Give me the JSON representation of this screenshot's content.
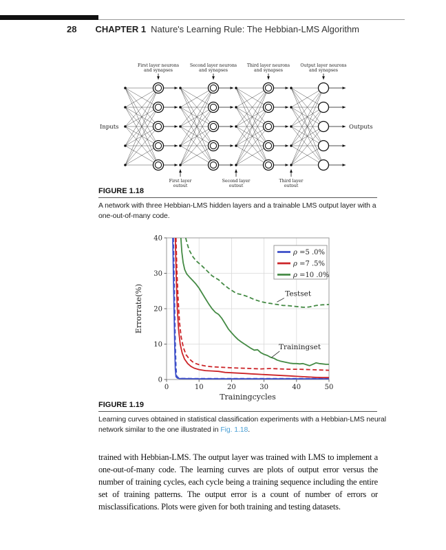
{
  "page": {
    "number": "28",
    "chapter_label": "CHAPTER 1",
    "chapter_title": "Nature's Learning Rule: The Hebbian-LMS Algorithm"
  },
  "figure_118": {
    "label": "FIGURE 1.18",
    "caption": "A network with three Hebbian-LMS hidden layers and a trainable LMS output layer with a one-out-of-many code.",
    "diagram": {
      "inputs_label": "Inputs",
      "outputs_label": "Outputs",
      "rows": 5,
      "layers": 4,
      "hidden_layers": 3,
      "layer_top_labels": [
        [
          "First layer neurons",
          "and synapses"
        ],
        [
          "Second layer neurons",
          "and synapses"
        ],
        [
          "Third layer neurons",
          "and synapses"
        ],
        [
          "Output layer neurons",
          "and synapses"
        ]
      ],
      "layer_bottom_labels": [
        [
          "First layer",
          "output"
        ],
        [
          "Second layer",
          "output"
        ],
        [
          "Third layer",
          "output"
        ]
      ]
    }
  },
  "figure_119": {
    "label": "FIGURE 1.19",
    "caption_before_link": "Learning curves obtained in statistical classification experiments with a Hebbian-LMS neural network similar to the one illustrated in ",
    "caption_link": "Fig. 1.18",
    "caption_after_link": "."
  },
  "chart_data": {
    "type": "line",
    "xlabel": "Trainingcycles",
    "ylabel": "Errorrate(%)",
    "xlim": [
      0,
      50
    ],
    "ylim": [
      0,
      40
    ],
    "xticks": [
      0,
      10,
      20,
      30,
      40,
      50
    ],
    "yticks": [
      0,
      10,
      20,
      30,
      40
    ],
    "grid": true,
    "legend_position": "top-right",
    "legend": [
      {
        "label_sym": "ρ",
        "label_rest": " =5 .0%",
        "color": "#3c4ec8"
      },
      {
        "label_sym": "ρ",
        "label_rest": " =7 .5%",
        "color": "#cc2428"
      },
      {
        "label_sym": "ρ",
        "label_rest": " =10 .0%",
        "color": "#448a44"
      }
    ],
    "annotations": [
      {
        "text": "Testset",
        "tx": 40.5,
        "ty": 24.3,
        "ax1": 36.2,
        "ay1": 23.0,
        "ax2": 34.0,
        "ay2": 21.9
      },
      {
        "text": "Trainingset",
        "tx": 41.0,
        "ty": 9.2,
        "ax1": 34.8,
        "ay1": 8.0,
        "ax2": 32.3,
        "ay2": 6.2
      }
    ],
    "series": [
      {
        "name": "rho 5.0% training set",
        "color": "#3c4ec8",
        "dash": false,
        "points": [
          [
            1.9,
            40
          ],
          [
            2.1,
            30
          ],
          [
            2.3,
            20
          ],
          [
            2.5,
            10
          ],
          [
            2.7,
            3
          ],
          [
            2.9,
            0.8
          ],
          [
            3.3,
            0.4
          ],
          [
            4,
            0.25
          ],
          [
            10,
            0.2
          ],
          [
            20,
            0.2
          ],
          [
            30,
            0.2
          ],
          [
            40,
            0.2
          ],
          [
            50,
            0.2
          ]
        ]
      },
      {
        "name": "rho 5.0% test set",
        "color": "#3c4ec8",
        "dash": true,
        "points": [
          [
            2.1,
            40
          ],
          [
            2.3,
            30
          ],
          [
            2.5,
            20
          ],
          [
            2.7,
            10
          ],
          [
            2.9,
            3.5
          ],
          [
            3.1,
            1
          ],
          [
            3.6,
            0.5
          ],
          [
            4.5,
            0.3
          ],
          [
            10,
            0.25
          ],
          [
            20,
            0.25
          ],
          [
            30,
            0.25
          ],
          [
            40,
            0.25
          ],
          [
            50,
            0.25
          ]
        ]
      },
      {
        "name": "rho 7.5% training set",
        "color": "#cc2428",
        "dash": false,
        "points": [
          [
            2.7,
            40
          ],
          [
            3.0,
            28
          ],
          [
            3.3,
            20
          ],
          [
            3.7,
            14
          ],
          [
            4.2,
            10
          ],
          [
            4.8,
            7.5
          ],
          [
            5.5,
            5.8
          ],
          [
            6.5,
            4.5
          ],
          [
            7.5,
            3.7
          ],
          [
            8.5,
            3.2
          ],
          [
            10,
            2.8
          ],
          [
            12,
            2.5
          ],
          [
            14,
            2.4
          ],
          [
            16,
            2.3
          ],
          [
            18,
            2.0
          ],
          [
            20,
            1.9
          ],
          [
            22,
            1.8
          ],
          [
            24,
            1.7
          ],
          [
            26,
            1.6
          ],
          [
            28,
            1.5
          ],
          [
            30,
            1.4
          ],
          [
            32,
            1.3
          ],
          [
            34,
            1.2
          ],
          [
            36,
            1.1
          ],
          [
            38,
            1.0
          ],
          [
            40,
            0.9
          ],
          [
            42,
            0.8
          ],
          [
            44,
            0.7
          ],
          [
            46,
            0.6
          ],
          [
            48,
            0.55
          ],
          [
            50,
            0.55
          ]
        ]
      },
      {
        "name": "rho 7.5% test set",
        "color": "#cc2428",
        "dash": true,
        "points": [
          [
            2.9,
            40
          ],
          [
            3.2,
            30
          ],
          [
            3.6,
            22
          ],
          [
            4.0,
            16
          ],
          [
            4.5,
            12
          ],
          [
            5.2,
            9
          ],
          [
            6,
            7
          ],
          [
            7,
            5.8
          ],
          [
            8,
            5
          ],
          [
            9,
            4.5
          ],
          [
            10,
            4.2
          ],
          [
            12,
            3.8
          ],
          [
            14,
            3.6
          ],
          [
            16,
            3.5
          ],
          [
            18,
            3.4
          ],
          [
            20,
            3.3
          ],
          [
            23,
            3.2
          ],
          [
            26,
            3.1
          ],
          [
            29,
            3.0
          ],
          [
            32,
            3.1
          ],
          [
            35,
            3.0
          ],
          [
            38,
            2.9
          ],
          [
            41,
            2.9
          ],
          [
            44,
            2.8
          ],
          [
            47,
            2.7
          ],
          [
            50,
            2.6
          ]
        ]
      },
      {
        "name": "rho 10.0% training set",
        "color": "#448a44",
        "dash": false,
        "points": [
          [
            4.4,
            40
          ],
          [
            4.7,
            36
          ],
          [
            5.1,
            33
          ],
          [
            5.6,
            31
          ],
          [
            6.2,
            29.8
          ],
          [
            7,
            29
          ],
          [
            8,
            28
          ],
          [
            9,
            27
          ],
          [
            10,
            25.8
          ],
          [
            11,
            24.3
          ],
          [
            12,
            22.8
          ],
          [
            13,
            21.3
          ],
          [
            14,
            20
          ],
          [
            15,
            19
          ],
          [
            16,
            18.4
          ],
          [
            17,
            17.3
          ],
          [
            18,
            15.8
          ],
          [
            19,
            14.3
          ],
          [
            20,
            13.2
          ],
          [
            21,
            12.2
          ],
          [
            22,
            11.3
          ],
          [
            23,
            10.6
          ],
          [
            24,
            10
          ],
          [
            25,
            9.4
          ],
          [
            26,
            8.8
          ],
          [
            27,
            8.3
          ],
          [
            28,
            8.4
          ],
          [
            29,
            7.6
          ],
          [
            30,
            7.1
          ],
          [
            31,
            6.8
          ],
          [
            32,
            6.3
          ],
          [
            33,
            6
          ],
          [
            34,
            5.5
          ],
          [
            35,
            5.2
          ],
          [
            36,
            5
          ],
          [
            37,
            4.8
          ],
          [
            38,
            4.6
          ],
          [
            39,
            4.5
          ],
          [
            40,
            4.5
          ],
          [
            41,
            4.4
          ],
          [
            42,
            4.5
          ],
          [
            43,
            4.2
          ],
          [
            44,
            3.9
          ],
          [
            45,
            4.3
          ],
          [
            46,
            4.7
          ],
          [
            47,
            4.5
          ],
          [
            48,
            4.4
          ],
          [
            49,
            4.3
          ],
          [
            50,
            4.3
          ]
        ]
      },
      {
        "name": "rho 10.0% test set",
        "color": "#448a44",
        "dash": true,
        "points": [
          [
            5.9,
            40
          ],
          [
            6.4,
            38.2
          ],
          [
            7,
            36.5
          ],
          [
            8,
            34.8
          ],
          [
            9,
            33.6
          ],
          [
            10,
            32.8
          ],
          [
            11,
            32
          ],
          [
            12,
            31.1
          ],
          [
            13,
            30.2
          ],
          [
            14,
            29.3
          ],
          [
            15,
            28.7
          ],
          [
            16,
            28.2
          ],
          [
            17,
            27.3
          ],
          [
            18,
            26.5
          ],
          [
            19,
            25.8
          ],
          [
            20,
            25.2
          ],
          [
            21,
            24.6
          ],
          [
            22,
            24.2
          ],
          [
            23,
            24
          ],
          [
            24,
            23.7
          ],
          [
            25,
            23.4
          ],
          [
            26,
            23
          ],
          [
            27,
            22.6
          ],
          [
            28,
            22.3
          ],
          [
            29,
            22
          ],
          [
            30,
            21.8
          ],
          [
            31,
            21.6
          ],
          [
            32,
            21.5
          ],
          [
            33,
            21.3
          ],
          [
            34,
            21.2
          ],
          [
            35,
            21
          ],
          [
            36,
            20.9
          ],
          [
            37,
            20.9
          ],
          [
            38,
            20.8
          ],
          [
            39,
            20.7
          ],
          [
            40,
            20.6
          ],
          [
            41,
            20.5
          ],
          [
            42,
            20.4
          ],
          [
            43,
            20.4
          ],
          [
            44,
            20.5
          ],
          [
            45,
            20.7
          ],
          [
            46,
            20.9
          ],
          [
            47,
            21
          ],
          [
            48,
            21.1
          ],
          [
            49,
            21.1
          ],
          [
            50,
            21.2
          ]
        ]
      }
    ]
  },
  "body_paragraph": "trained with Hebbian-LMS. The output layer was trained with LMS to implement a one-out-of-many code. The learning curves are plots of output error versus the number of training cycles, each cycle being a training sequence including the entire set of training patterns. The output error is a count of number of errors or misclassifications. Plots were given for both training and testing datasets."
}
